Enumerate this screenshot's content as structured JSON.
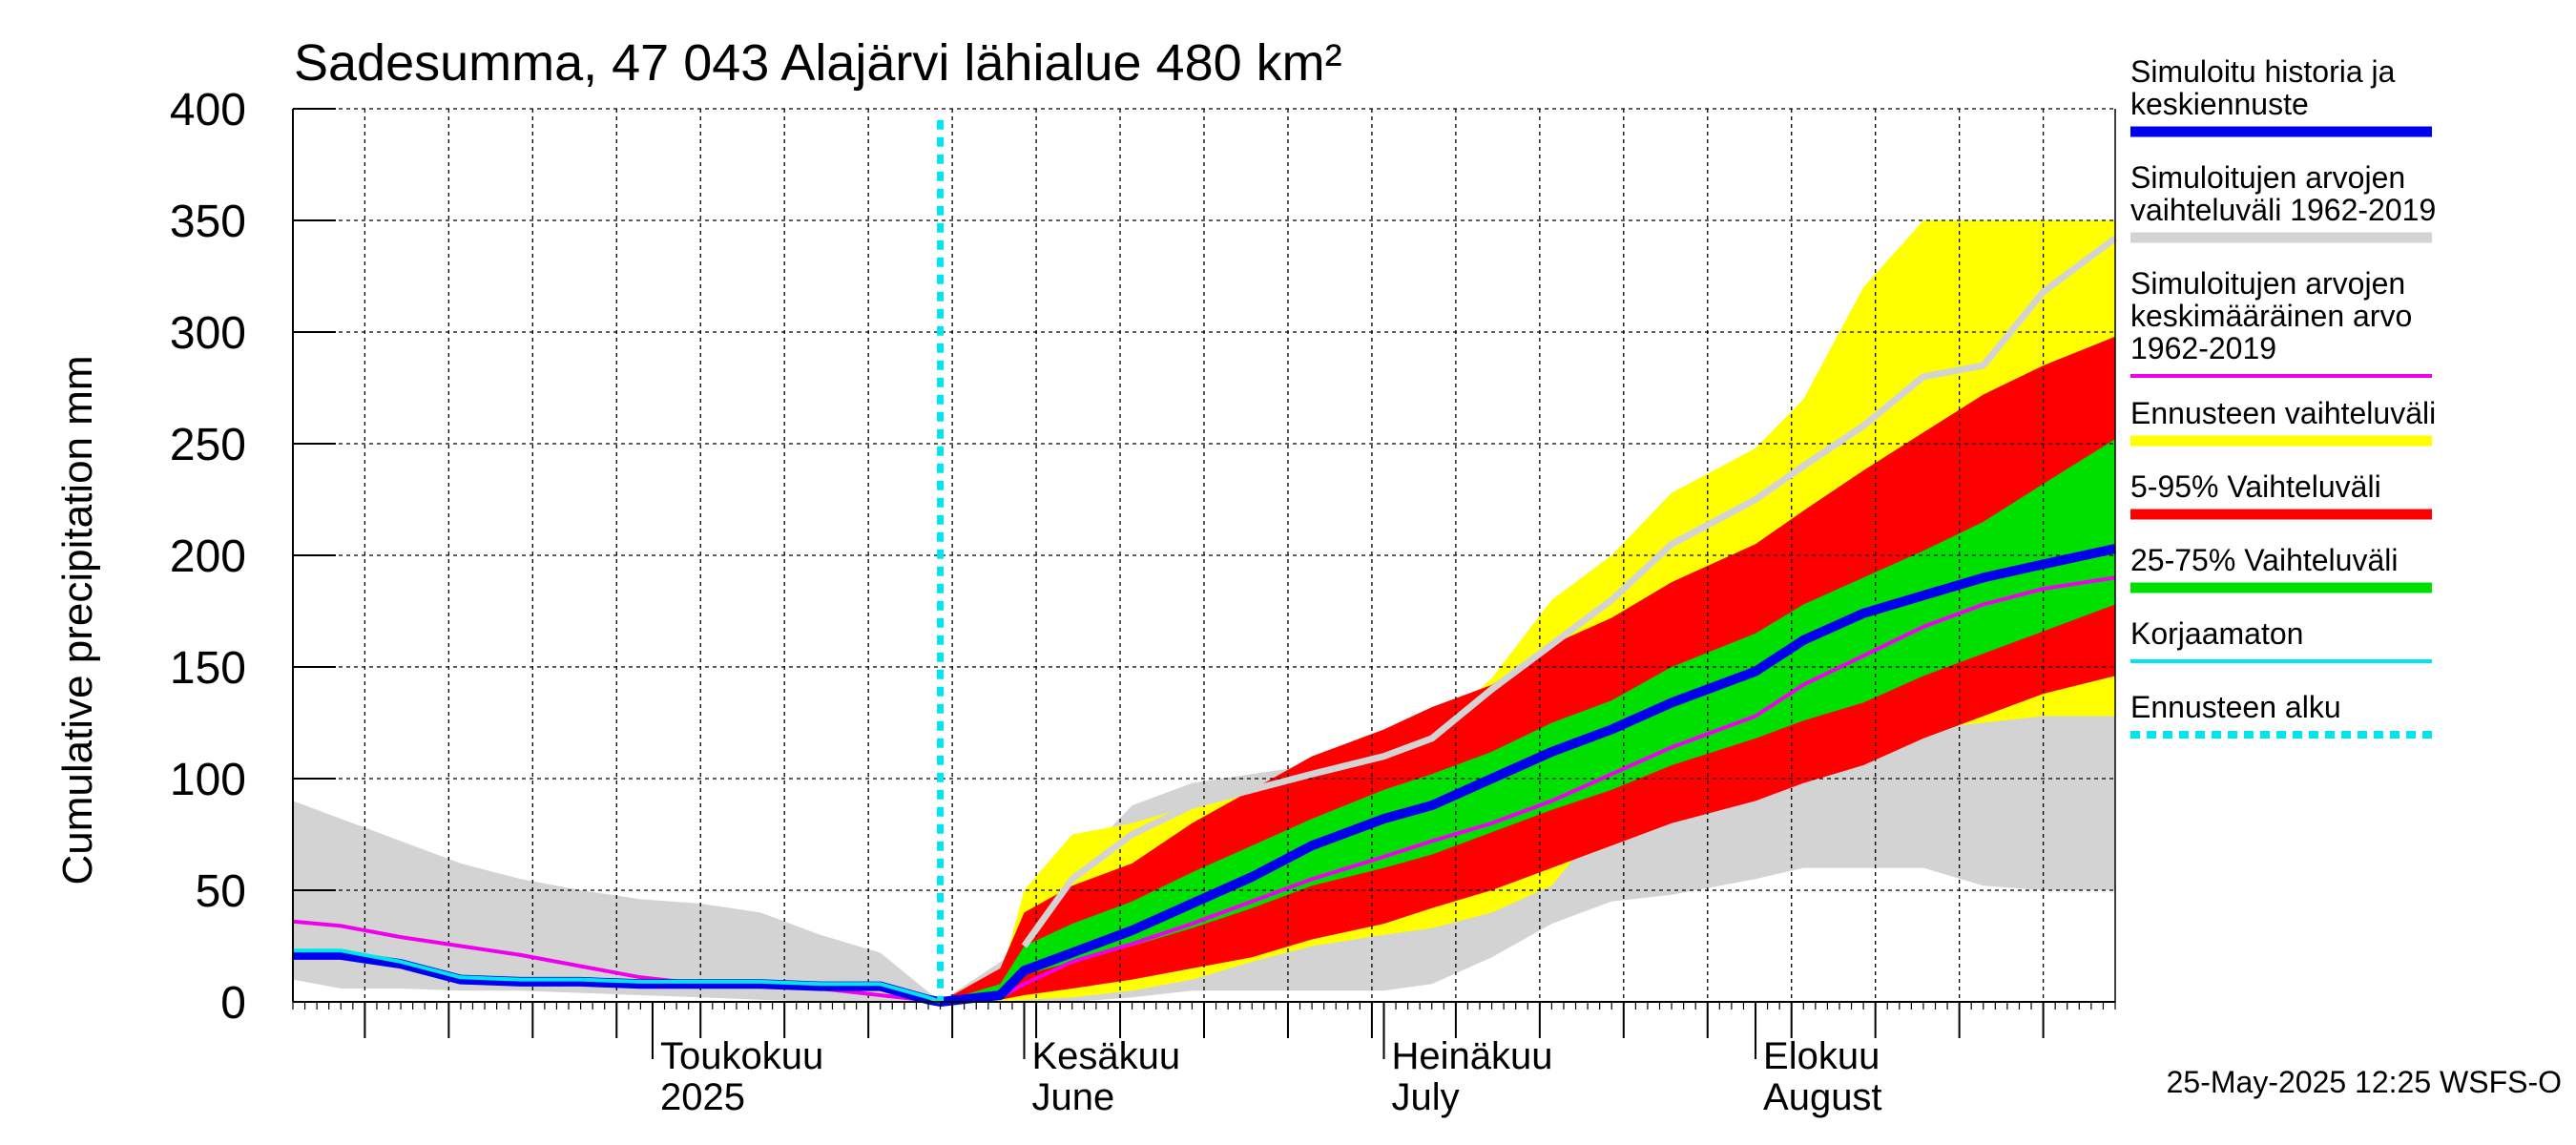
{
  "chart_data": {
    "type": "area",
    "title": "Sadesumma, 47 043 Alajärvi lähialue 480 km²",
    "ylabel": "Cumulative precipitation   mm",
    "xlabel": "",
    "ylim": [
      0,
      400
    ],
    "xlim": [
      "2025-04-01",
      "2025-08-31"
    ],
    "yticks": [
      "0",
      "50",
      "100",
      "150",
      "200",
      "250",
      "300",
      "350",
      "400"
    ],
    "grid": true,
    "legend_position": "right",
    "forecast_start": "2025-05-25",
    "month_labels": [
      {
        "top": "Toukokuu",
        "bottom": "2025",
        "date": "2025-05-01"
      },
      {
        "top": "Kesäkuu",
        "bottom": "June",
        "date": "2025-06-01"
      },
      {
        "top": "Heinäkuu",
        "bottom": "July",
        "date": "2025-07-01"
      },
      {
        "top": "Elokuu",
        "bottom": "August",
        "date": "2025-08-01"
      }
    ],
    "timestamp": "25-May-2025 12:25 WSFS-O",
    "colors": {
      "hist_range": "#d3d3d3",
      "forecast_range": "#ffff00",
      "p5_95": "#ff0000",
      "p25_75": "#00e000",
      "simulated": "#0000ee",
      "mean": "#ee00ee",
      "uncorrected": "#00e5ee",
      "forecast_start": "#00e5ee"
    },
    "legend": [
      {
        "lines": [
          "Simuloitu historia ja",
          "keskiennuste"
        ],
        "color": "#0000ee",
        "style": "thick"
      },
      {
        "lines": [
          "Simuloitujen arvojen",
          "vaihteluväli 1962-2019"
        ],
        "color": "#d3d3d3",
        "style": "thick"
      },
      {
        "lines": [
          "Simuloitujen arvojen",
          "keskimääräinen arvo",
          "   1962-2019"
        ],
        "color": "#ee00ee",
        "style": "thin"
      },
      {
        "lines": [
          "Ennusteen vaihteluväli"
        ],
        "color": "#ffff00",
        "style": "thick"
      },
      {
        "lines": [
          "5-95% Vaihteluväli"
        ],
        "color": "#ff0000",
        "style": "thick"
      },
      {
        "lines": [
          "25-75% Vaihteluväli"
        ],
        "color": "#00e000",
        "style": "thick"
      },
      {
        "lines": [
          "Korjaamaton"
        ],
        "color": "#00e5ee",
        "style": "thin"
      },
      {
        "lines": [
          "Ennusteen alku"
        ],
        "color": "#00e5ee",
        "style": "dotted"
      }
    ],
    "series": [
      {
        "name": "Simuloitujen arvojen vaihteluväli 1962-2019",
        "kind": "band",
        "x": [
          "2025-04-01",
          "2025-04-05",
          "2025-04-10",
          "2025-04-15",
          "2025-04-20",
          "2025-04-25",
          "2025-04-30",
          "2025-05-05",
          "2025-05-10",
          "2025-05-15",
          "2025-05-20",
          "2025-05-25",
          "2025-06-01",
          "2025-06-05",
          "2025-06-10",
          "2025-06-15",
          "2025-06-20",
          "2025-06-25",
          "2025-07-01",
          "2025-07-05",
          "2025-07-10",
          "2025-07-15",
          "2025-07-20",
          "2025-07-25",
          "2025-08-01",
          "2025-08-05",
          "2025-08-10",
          "2025-08-15",
          "2025-08-20",
          "2025-08-25",
          "2025-08-31"
        ],
        "lower": [
          10,
          6,
          6,
          5,
          5,
          4,
          3,
          2,
          1,
          0,
          0,
          0,
          0,
          0,
          2,
          5,
          5,
          5,
          5,
          8,
          20,
          35,
          45,
          48,
          55,
          60,
          60,
          60,
          52,
          50,
          50
        ],
        "upper": [
          90,
          82,
          72,
          62,
          55,
          50,
          46,
          44,
          40,
          30,
          22,
          0,
          25,
          60,
          88,
          98,
          102,
          106,
          118,
          128,
          140,
          168,
          200,
          222,
          240,
          250,
          260,
          278,
          310,
          335,
          345
        ]
      },
      {
        "name": "Ennusteen vaihteluväli",
        "kind": "band",
        "x": [
          "2025-05-25",
          "2025-05-30",
          "2025-06-01",
          "2025-06-05",
          "2025-06-10",
          "2025-06-15",
          "2025-06-20",
          "2025-06-25",
          "2025-07-01",
          "2025-07-05",
          "2025-07-10",
          "2025-07-15",
          "2025-07-20",
          "2025-07-25",
          "2025-08-01",
          "2025-08-05",
          "2025-08-10",
          "2025-08-15",
          "2025-08-20",
          "2025-08-25",
          "2025-08-31"
        ],
        "lower": [
          0,
          0,
          1,
          2,
          5,
          10,
          18,
          25,
          30,
          33,
          40,
          52,
          85,
          90,
          100,
          118,
          120,
          122,
          125,
          128,
          128
        ],
        "upper": [
          0,
          10,
          50,
          75,
          80,
          88,
          96,
          104,
          112,
          120,
          145,
          180,
          200,
          228,
          248,
          270,
          320,
          350,
          350,
          350,
          350
        ]
      },
      {
        "name": "5-95% Vaihteluväli",
        "kind": "band",
        "x": [
          "2025-05-25",
          "2025-05-30",
          "2025-06-01",
          "2025-06-05",
          "2025-06-10",
          "2025-06-15",
          "2025-06-20",
          "2025-06-25",
          "2025-07-01",
          "2025-07-05",
          "2025-07-10",
          "2025-07-15",
          "2025-07-20",
          "2025-07-25",
          "2025-08-01",
          "2025-08-05",
          "2025-08-10",
          "2025-08-15",
          "2025-08-20",
          "2025-08-25",
          "2025-08-31"
        ],
        "lower": [
          0,
          1,
          3,
          6,
          10,
          15,
          20,
          28,
          35,
          42,
          50,
          60,
          70,
          80,
          90,
          98,
          106,
          118,
          128,
          138,
          146
        ],
        "upper": [
          0,
          15,
          40,
          52,
          62,
          80,
          95,
          110,
          122,
          132,
          142,
          160,
          172,
          188,
          205,
          220,
          238,
          255,
          272,
          285,
          298
        ]
      },
      {
        "name": "25-75% Vaihteluväli",
        "kind": "band",
        "x": [
          "2025-05-25",
          "2025-05-30",
          "2025-06-01",
          "2025-06-05",
          "2025-06-10",
          "2025-06-15",
          "2025-06-20",
          "2025-06-25",
          "2025-07-01",
          "2025-07-05",
          "2025-07-10",
          "2025-07-15",
          "2025-07-20",
          "2025-07-25",
          "2025-08-01",
          "2025-08-05",
          "2025-08-10",
          "2025-08-15",
          "2025-08-20",
          "2025-08-25",
          "2025-08-31"
        ],
        "lower": [
          0,
          4,
          12,
          18,
          25,
          33,
          42,
          52,
          60,
          66,
          76,
          86,
          95,
          106,
          118,
          126,
          134,
          146,
          156,
          166,
          178
        ],
        "upper": [
          0,
          8,
          25,
          35,
          45,
          58,
          70,
          82,
          95,
          102,
          112,
          125,
          135,
          150,
          165,
          178,
          190,
          202,
          215,
          232,
          252
        ]
      },
      {
        "name": "Simuloitujen arvojen keskimääräinen arvo 1962-2019",
        "kind": "line",
        "x": [
          "2025-04-01",
          "2025-04-05",
          "2025-04-10",
          "2025-04-15",
          "2025-04-20",
          "2025-04-25",
          "2025-04-30",
          "2025-05-05",
          "2025-05-10",
          "2025-05-15",
          "2025-05-20",
          "2025-05-25",
          "2025-05-30",
          "2025-06-01",
          "2025-06-05",
          "2025-06-10",
          "2025-06-15",
          "2025-06-20",
          "2025-06-25",
          "2025-07-01",
          "2025-07-05",
          "2025-07-10",
          "2025-07-15",
          "2025-07-20",
          "2025-07-25",
          "2025-08-01",
          "2025-08-05",
          "2025-08-10",
          "2025-08-15",
          "2025-08-20",
          "2025-08-25",
          "2025-08-31"
        ],
        "values": [
          36,
          34,
          29,
          25,
          21,
          16,
          11,
          8,
          7,
          6,
          3,
          0,
          2,
          8,
          18,
          26,
          35,
          45,
          55,
          65,
          72,
          80,
          90,
          102,
          114,
          128,
          142,
          155,
          168,
          178,
          185,
          190
        ]
      },
      {
        "name": "Simuloitu historia ja keskiennuste",
        "kind": "line",
        "x": [
          "2025-04-01",
          "2025-04-05",
          "2025-04-10",
          "2025-04-15",
          "2025-04-20",
          "2025-04-25",
          "2025-04-30",
          "2025-05-05",
          "2025-05-10",
          "2025-05-15",
          "2025-05-20",
          "2025-05-24",
          "2025-05-25",
          "2025-05-30",
          "2025-06-01",
          "2025-06-05",
          "2025-06-10",
          "2025-06-15",
          "2025-06-20",
          "2025-06-25",
          "2025-07-01",
          "2025-07-05",
          "2025-07-10",
          "2025-07-15",
          "2025-07-20",
          "2025-07-25",
          "2025-08-01",
          "2025-08-05",
          "2025-08-10",
          "2025-08-15",
          "2025-08-20",
          "2025-08-25",
          "2025-08-31"
        ],
        "values": [
          21,
          21,
          17,
          10,
          9,
          9,
          8,
          8,
          8,
          7,
          7,
          1,
          0,
          3,
          14,
          22,
          32,
          44,
          56,
          70,
          82,
          88,
          100,
          112,
          122,
          134,
          148,
          162,
          174,
          182,
          190,
          196,
          203
        ]
      },
      {
        "name": "Korjaamaton",
        "kind": "line",
        "x": [
          "2025-04-01",
          "2025-04-05",
          "2025-04-10",
          "2025-04-15",
          "2025-04-20",
          "2025-04-25",
          "2025-04-30",
          "2025-05-05",
          "2025-05-10",
          "2025-05-15",
          "2025-05-20",
          "2025-05-24",
          "2025-05-25"
        ],
        "values": [
          23,
          23,
          18,
          11,
          10,
          10,
          9,
          9,
          9,
          8,
          8,
          2,
          0
        ]
      },
      {
        "name": "Simuloitujen arvojen keskiarvo (harmaa viiva)",
        "kind": "line-upper",
        "x": [
          "2025-06-01",
          "2025-06-05",
          "2025-06-10",
          "2025-06-15",
          "2025-06-20",
          "2025-06-25",
          "2025-07-01",
          "2025-07-05",
          "2025-07-10",
          "2025-07-15",
          "2025-07-20",
          "2025-07-25",
          "2025-08-01",
          "2025-08-05",
          "2025-08-10",
          "2025-08-15",
          "2025-08-20",
          "2025-08-25",
          "2025-08-31"
        ],
        "values": [
          25,
          55,
          75,
          88,
          95,
          102,
          110,
          118,
          140,
          160,
          180,
          205,
          225,
          240,
          258,
          280,
          285,
          318,
          342
        ]
      }
    ]
  }
}
